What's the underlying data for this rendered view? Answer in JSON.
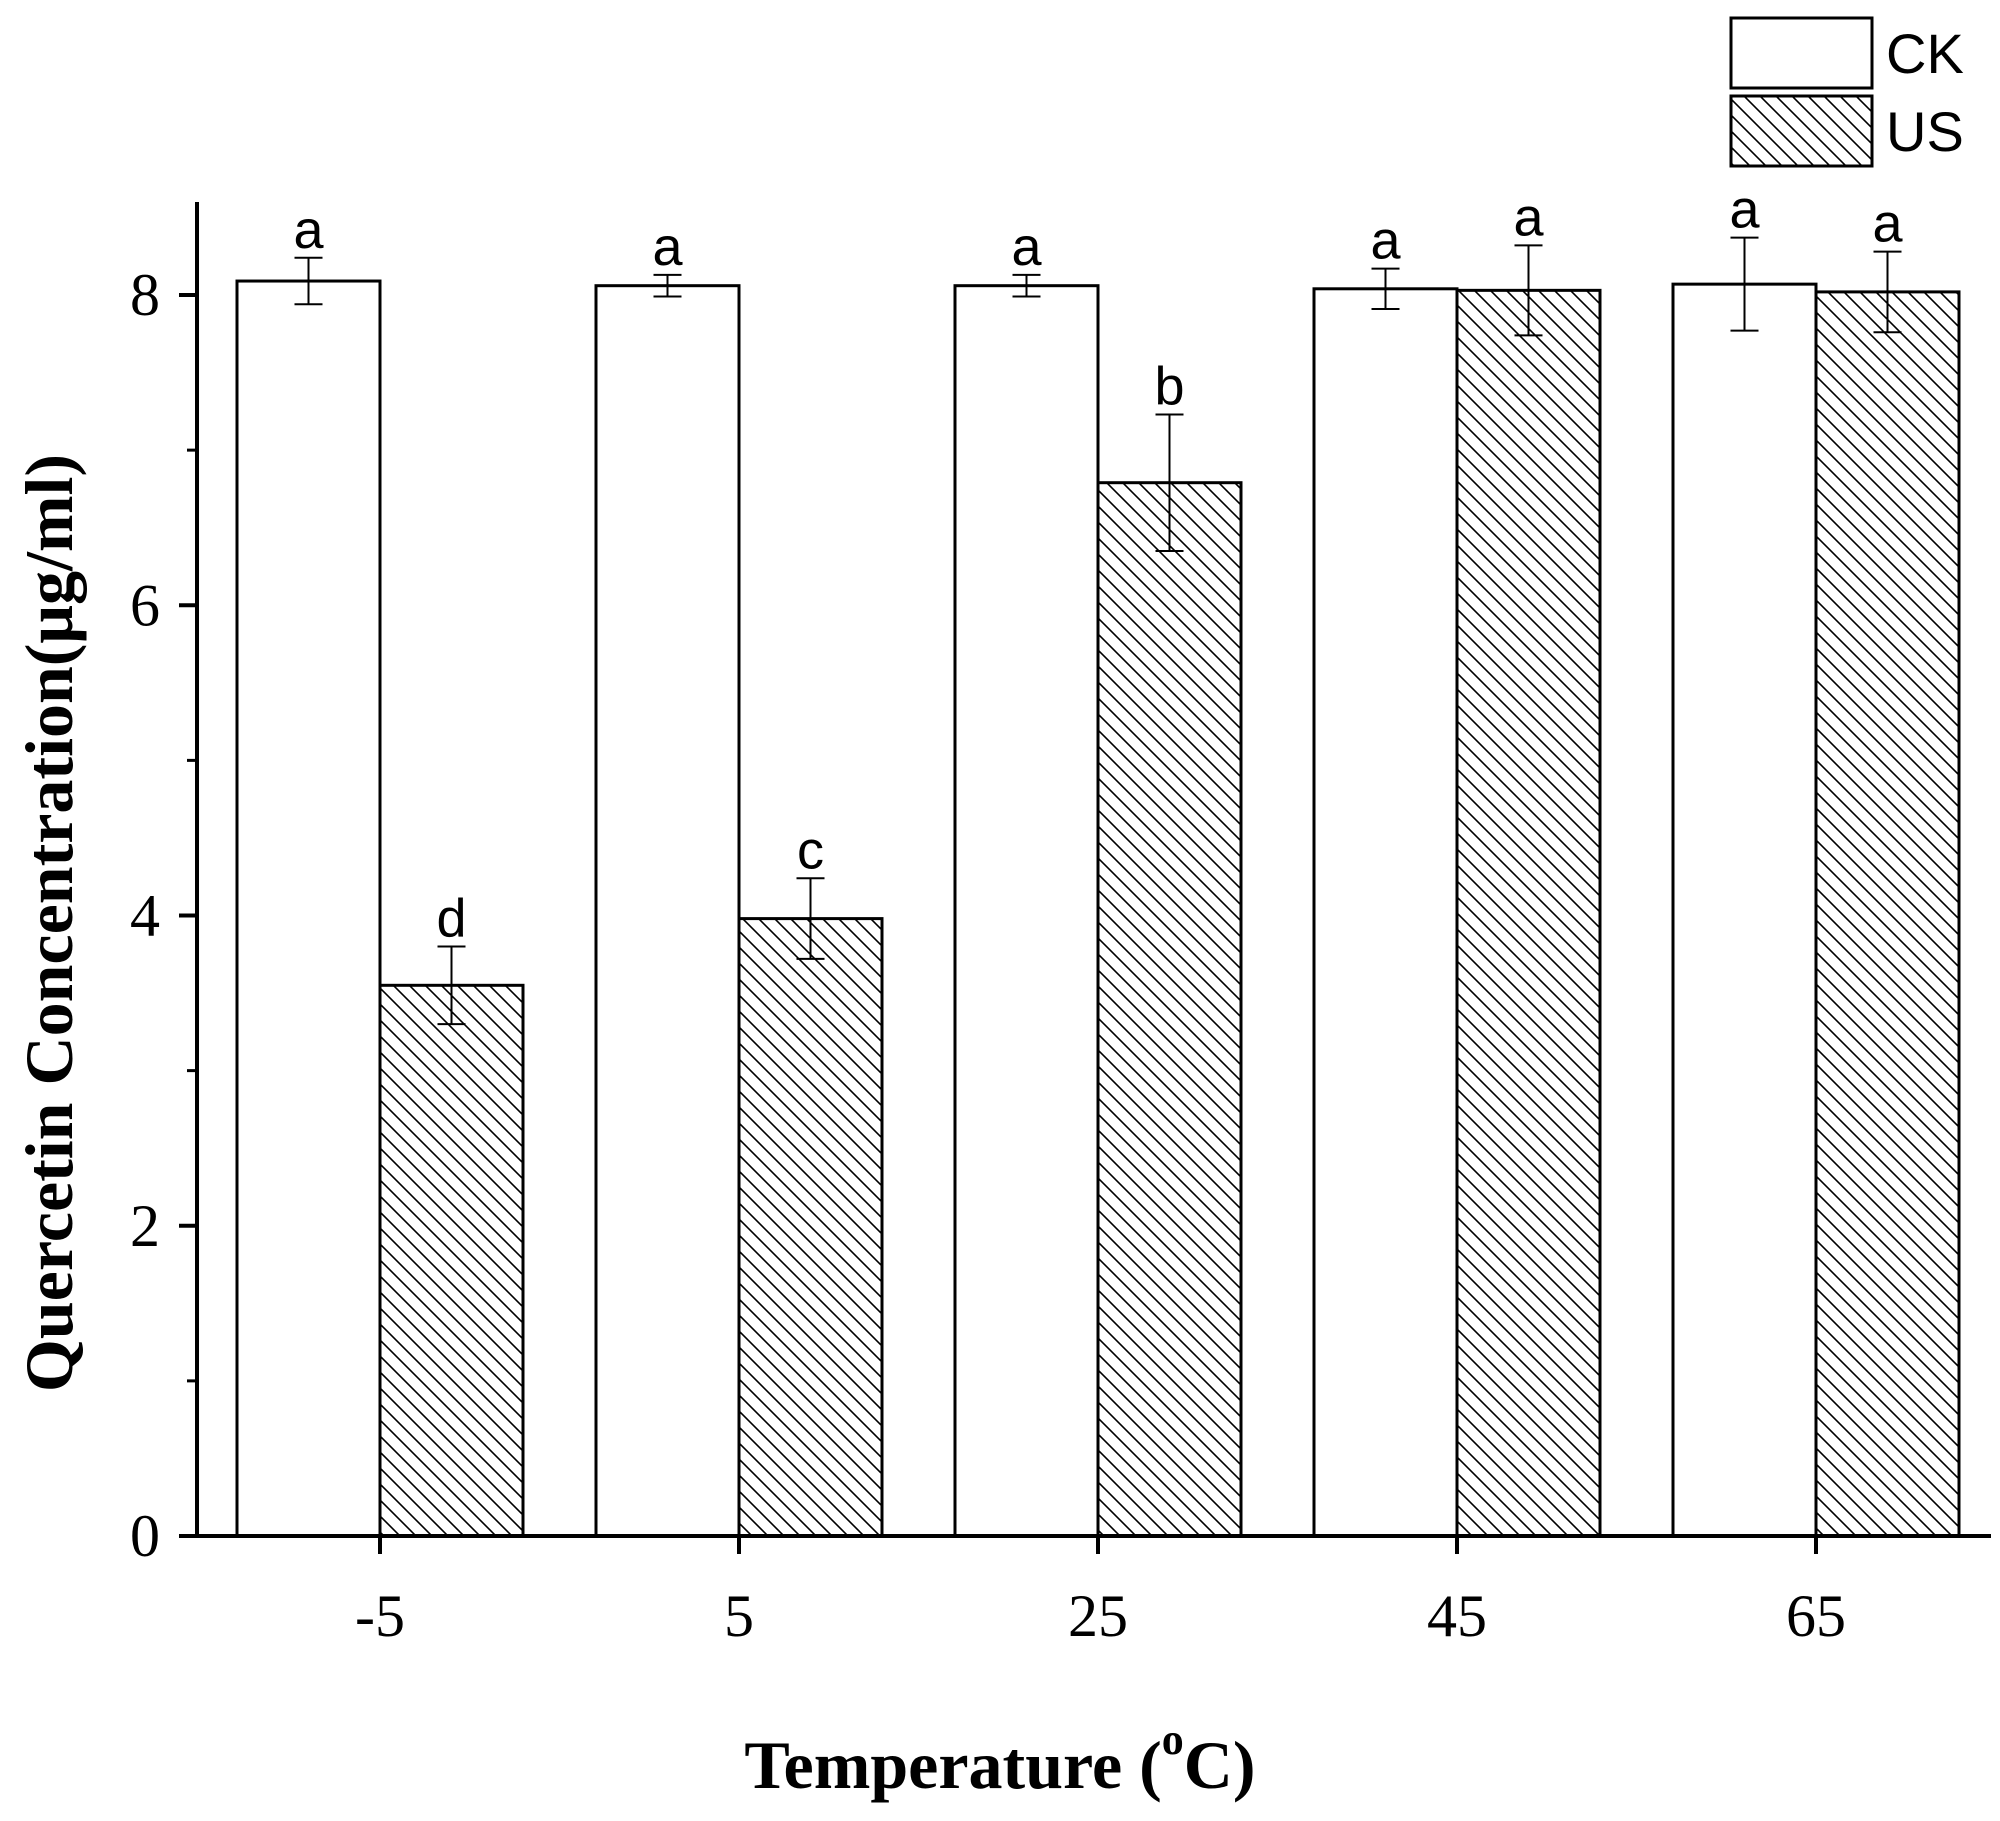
{
  "chart_data": {
    "type": "bar",
    "xlabel": "Temperature (",
    "xlabel_sup": "o",
    "xlabel_suffix": "C)",
    "ylabel": "Quercetin Concentration(μg/ml)",
    "categories": [
      "-5",
      "5",
      "25",
      "45",
      "65"
    ],
    "ylim": [
      0,
      8.6
    ],
    "yticks": [
      0,
      2,
      4,
      6,
      8
    ],
    "grid": false,
    "legend_position": "top-right",
    "series": [
      {
        "name": "CK",
        "fill": "blank",
        "values": [
          8.09,
          8.06,
          8.06,
          8.04,
          8.07
        ],
        "errors": [
          0.15,
          0.07,
          0.07,
          0.13,
          0.3
        ],
        "sig_labels": [
          "a",
          "a",
          "a",
          "a",
          "a"
        ]
      },
      {
        "name": "US",
        "fill": "hatch",
        "values": [
          3.55,
          3.98,
          6.79,
          8.03,
          8.02
        ],
        "errors": [
          0.25,
          0.26,
          0.44,
          0.29,
          0.26
        ],
        "sig_labels": [
          "d",
          "c",
          "b",
          "a",
          "a"
        ]
      }
    ],
    "colors": {
      "axis": "#000000",
      "bar_fill": "#ffffff",
      "hatch": "#000000"
    }
  }
}
